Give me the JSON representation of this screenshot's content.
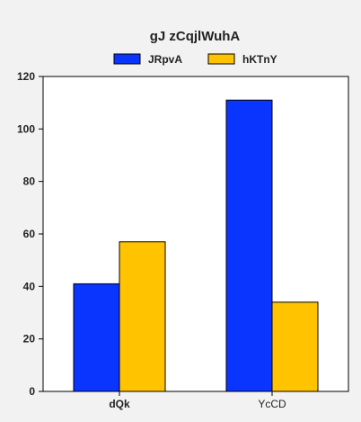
{
  "chart_data": {
    "type": "bar",
    "title": "gJ zCqjlWuhA",
    "categories": [
      "dQk",
      "YcCD"
    ],
    "series": [
      {
        "name": "JRpvA",
        "values": [
          41,
          111
        ],
        "color": "#0a34ff"
      },
      {
        "name": "hKTnY",
        "values": [
          57,
          34
        ],
        "color": "#ffc300"
      }
    ],
    "ylim": [
      0,
      120
    ],
    "yticks": [
      0,
      20,
      40,
      60,
      80,
      100,
      120
    ],
    "xlabel": "",
    "ylabel": "",
    "grid": false,
    "legend_position": "top"
  }
}
